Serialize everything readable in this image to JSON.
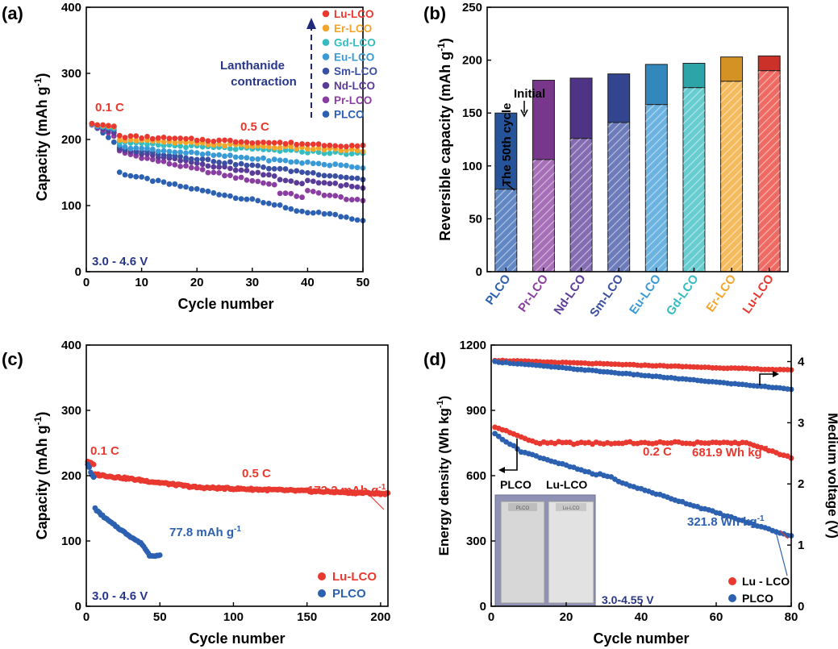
{
  "colors": {
    "Lu-LCO": "#e8382f",
    "Er-LCO": "#f2a52a",
    "Gd-LCO": "#34bcc0",
    "Eu-LCO": "#3a9ad6",
    "Sm-LCO": "#3b4fa2",
    "Nd-LCO": "#5b3b98",
    "Pr-LCO": "#8a3fa0",
    "PLCO": "#2c60b0",
    "arrow": "#1e2a7a",
    "annot_red": "#e8382f",
    "annot_blue": "#2c60b0",
    "annot_navy": "#28368a"
  },
  "chart_data": [
    {
      "panel": "(a)",
      "type": "scatter",
      "xlabel": "Cycle number",
      "ylabel": "Capacity (mAh g",
      "ylabel_sup": "-1",
      "ylabel_end": ")",
      "xlim": [
        0,
        50
      ],
      "ylim": [
        0,
        400
      ],
      "xticks": [
        0,
        10,
        20,
        30,
        40,
        50
      ],
      "yticks": [
        0,
        100,
        200,
        300,
        400
      ],
      "legend": [
        "Lu-LCO",
        "Er-LCO",
        "Gd-LCO",
        "Eu-LCO",
        "Sm-LCO",
        "Nd-LCO",
        "Pr-LCO",
        "PLCO"
      ],
      "annotations": {
        "rate1": "0.1 C",
        "rate2": "0.5 C",
        "voltage": "3.0 - 4.6 V",
        "lanthanide1": "Lanthanide",
        "lanthanide2": "contraction"
      },
      "series": [
        {
          "name": "Lu-LCO",
          "x_start": 1,
          "initial": [
            224,
            222,
            222,
            221,
            220
          ],
          "start": 205,
          "end": 190,
          "dip": 0
        },
        {
          "name": "Er-LCO",
          "x_start": 1,
          "initial": [
            224,
            222,
            221,
            220,
            219
          ],
          "start": 200,
          "end": 183,
          "dip": 0
        },
        {
          "name": "Gd-LCO",
          "x_start": 1,
          "initial": [
            223,
            221,
            220,
            219,
            218
          ],
          "start": 195,
          "end": 178,
          "dip": 0
        },
        {
          "name": "Eu-LCO",
          "x_start": 1,
          "initial": [
            223,
            220,
            219,
            218,
            216
          ],
          "start": 190,
          "end": 158,
          "dip": 0
        },
        {
          "name": "Sm-LCO",
          "x_start": 1,
          "initial": [
            223,
            220,
            218,
            216,
            214
          ],
          "start": 188,
          "end": 140,
          "dip": 0
        },
        {
          "name": "Nd-LCO",
          "x_start": 1,
          "initial": [
            223,
            219,
            216,
            213,
            210
          ],
          "start": 185,
          "end": 126,
          "dip": 6
        },
        {
          "name": "Pr-LCO",
          "x_start": 1,
          "initial": [
            222,
            218,
            214,
            210,
            205
          ],
          "start": 182,
          "end": 106,
          "dip": 10
        },
        {
          "name": "PLCO",
          "x_start": 1,
          "initial": [
            223,
            217,
            210,
            203,
            196
          ],
          "start": 150,
          "end": 78,
          "dip": 0
        }
      ]
    },
    {
      "panel": "(b)",
      "type": "bar",
      "ylabel": "Reversible capacity (mAh g",
      "ylabel_sup": "-1",
      "ylabel_end": ")",
      "ylim": [
        0,
        250
      ],
      "yticks": [
        0,
        50,
        100,
        150,
        200,
        250
      ],
      "categories": [
        "PLCO",
        "Pr-LCO",
        "Nd-LCO",
        "Sm-LCO",
        "Eu-LCO",
        "Gd-LCO",
        "Er-LCO",
        "Lu-LCO"
      ],
      "series": [
        {
          "name": "Initial",
          "values": [
            150,
            181,
            183,
            187,
            196,
            197,
            203,
            204
          ]
        },
        {
          "name": "The 50th cycle",
          "values": [
            78,
            106,
            126,
            141,
            158,
            174,
            180,
            190
          ]
        }
      ],
      "annotations": {
        "initial": "Initial",
        "fiftieth": "The 50th cycle"
      }
    },
    {
      "panel": "(c)",
      "type": "scatter",
      "xlabel": "Cycle number",
      "ylabel": "Capacity (mAh g",
      "ylabel_sup": "-1",
      "ylabel_end": ")",
      "xlim": [
        0,
        205
      ],
      "ylim": [
        0,
        400
      ],
      "xticks": [
        0,
        50,
        100,
        150,
        200
      ],
      "yticks": [
        0,
        100,
        200,
        300,
        400
      ],
      "legend": [
        "Lu-LCO",
        "PLCO"
      ],
      "annotations": {
        "rate1": "0.1 C",
        "rate2": "0.5 C",
        "lu_final": "172.3 mAh g",
        "lu_final_sup": "-1",
        "plco_final": "77.8 mAh g",
        "plco_final_sup": "-1",
        "voltage": "3.0 - 4.6 V"
      },
      "series": [
        {
          "name": "Lu-LCO",
          "initial": [
            222,
            221,
            219,
            218,
            216
          ],
          "start": 202,
          "mid": 182,
          "mid_x": 75,
          "end": 172.3,
          "x_end": 205
        },
        {
          "name": "PLCO",
          "initial": [
            218,
            212,
            205,
            200,
            198
          ],
          "start": 150,
          "knee": 95,
          "knee_x": 38,
          "end": 77.8,
          "x_end": 50
        }
      ]
    },
    {
      "panel": "(d)",
      "type": "scatter",
      "xlabel": "Cycle number",
      "ylabel_left": "Energy density (Wh kg",
      "ylabel_left_sup": "-1",
      "ylabel_left_end": ")",
      "ylabel_right": "Medium voltage (V)",
      "xlim": [
        0,
        80
      ],
      "ylim_left": [
        0,
        1200
      ],
      "ylim_right": [
        0,
        4.27
      ],
      "xticks": [
        0,
        20,
        40,
        60,
        80
      ],
      "yticks_left": [
        0,
        300,
        600,
        900,
        1200
      ],
      "yticks_right": [
        0,
        1,
        2,
        3,
        4
      ],
      "legend": [
        "Lu - LCO",
        "PLCO"
      ],
      "annotations": {
        "rate": "0.2 C",
        "lu_final": "681.9 Wh kg",
        "lu_final_sup": "-1",
        "plco_final": "321.8 Wh kg",
        "plco_final_sup": "-1",
        "voltage": "3.0-4.55 V",
        "photo_left": "PLCO",
        "photo_right": "Lu-LCO",
        "pouch_left": "PLCO",
        "pouch_right": "Lu-LCO"
      },
      "energy": [
        {
          "name": "Lu - LCO",
          "start": 825,
          "plateau": 750,
          "end": 681.9
        },
        {
          "name": "PLCO",
          "start": 825,
          "end": 321.8
        }
      ],
      "voltage_series": [
        {
          "name": "Lu - LCO",
          "start": 4.02,
          "end": 3.86
        },
        {
          "name": "PLCO",
          "start": 4.0,
          "end": 3.55
        }
      ]
    }
  ],
  "panel_labels": {
    "a": "(a)",
    "b": "(b)",
    "c": "(c)",
    "d": "(d)"
  }
}
